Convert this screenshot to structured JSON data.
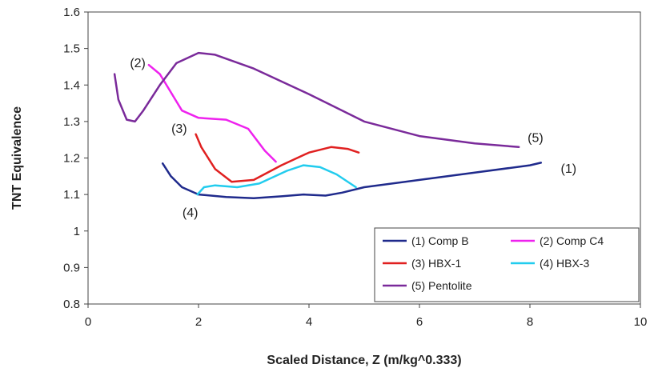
{
  "chart_data": {
    "type": "line",
    "title": "",
    "xlabel": "Scaled Distance, Z (m/kg^0.333)",
    "ylabel": "TNT Equivalence",
    "xlim": [
      0,
      10
    ],
    "ylim": [
      0.8,
      1.6
    ],
    "xticks": [
      0,
      2,
      4,
      6,
      8,
      10
    ],
    "yticks": [
      0.8,
      0.9,
      1,
      1.1,
      1.2,
      1.3,
      1.4,
      1.5,
      1.6
    ],
    "xtick_labels": [
      "0",
      "2",
      "4",
      "6",
      "8",
      "10"
    ],
    "ytick_labels": [
      "0.8",
      "0.9",
      "1",
      "1.1",
      "1.2",
      "1.3",
      "1.4",
      "1.5",
      "1.6"
    ],
    "grid": false,
    "legend_position": "bottom-right",
    "series": [
      {
        "name": "(1) Comp B",
        "color": "#1f2a8c",
        "points": [
          [
            1.35,
            1.185
          ],
          [
            1.5,
            1.15
          ],
          [
            1.7,
            1.12
          ],
          [
            2.0,
            1.1
          ],
          [
            2.5,
            1.093
          ],
          [
            3.0,
            1.09
          ],
          [
            3.5,
            1.095
          ],
          [
            3.9,
            1.1
          ],
          [
            4.3,
            1.097
          ],
          [
            4.6,
            1.105
          ],
          [
            5.0,
            1.12
          ],
          [
            6.0,
            1.14
          ],
          [
            7.0,
            1.16
          ],
          [
            8.0,
            1.18
          ],
          [
            8.2,
            1.187
          ]
        ]
      },
      {
        "name": "(2) Comp C4",
        "color": "#ee22ee",
        "points": [
          [
            1.1,
            1.455
          ],
          [
            1.3,
            1.43
          ],
          [
            1.5,
            1.38
          ],
          [
            1.7,
            1.33
          ],
          [
            2.0,
            1.31
          ],
          [
            2.5,
            1.305
          ],
          [
            2.9,
            1.28
          ],
          [
            3.2,
            1.22
          ],
          [
            3.4,
            1.19
          ]
        ]
      },
      {
        "name": "(3) HBX-1",
        "color": "#e02020",
        "points": [
          [
            1.95,
            1.265
          ],
          [
            2.05,
            1.23
          ],
          [
            2.3,
            1.17
          ],
          [
            2.6,
            1.135
          ],
          [
            3.0,
            1.14
          ],
          [
            3.5,
            1.18
          ],
          [
            4.0,
            1.215
          ],
          [
            4.4,
            1.23
          ],
          [
            4.7,
            1.225
          ],
          [
            4.9,
            1.215
          ]
        ]
      },
      {
        "name": "(4) HBX-3",
        "color": "#22ccee",
        "points": [
          [
            1.98,
            1.1
          ],
          [
            2.1,
            1.12
          ],
          [
            2.3,
            1.125
          ],
          [
            2.7,
            1.12
          ],
          [
            3.1,
            1.13
          ],
          [
            3.6,
            1.165
          ],
          [
            3.9,
            1.18
          ],
          [
            4.2,
            1.175
          ],
          [
            4.5,
            1.155
          ],
          [
            4.85,
            1.12
          ]
        ]
      },
      {
        "name": "(5) Pentolite",
        "color": "#7a2a9a",
        "points": [
          [
            0.48,
            1.43
          ],
          [
            0.55,
            1.36
          ],
          [
            0.7,
            1.305
          ],
          [
            0.85,
            1.3
          ],
          [
            1.0,
            1.33
          ],
          [
            1.3,
            1.4
          ],
          [
            1.6,
            1.46
          ],
          [
            2.0,
            1.488
          ],
          [
            2.3,
            1.483
          ],
          [
            3.0,
            1.445
          ],
          [
            4.0,
            1.375
          ],
          [
            5.0,
            1.3
          ],
          [
            6.0,
            1.26
          ],
          [
            7.0,
            1.24
          ],
          [
            7.8,
            1.23
          ]
        ]
      }
    ],
    "annotations": [
      {
        "text": "(1)",
        "x": 8.7,
        "y": 1.17
      },
      {
        "text": "(2)",
        "x": 0.9,
        "y": 1.46
      },
      {
        "text": "(3)",
        "x": 1.65,
        "y": 1.28
      },
      {
        "text": "(4)",
        "x": 1.85,
        "y": 1.05
      },
      {
        "text": "(5)",
        "x": 8.1,
        "y": 1.255
      }
    ]
  }
}
